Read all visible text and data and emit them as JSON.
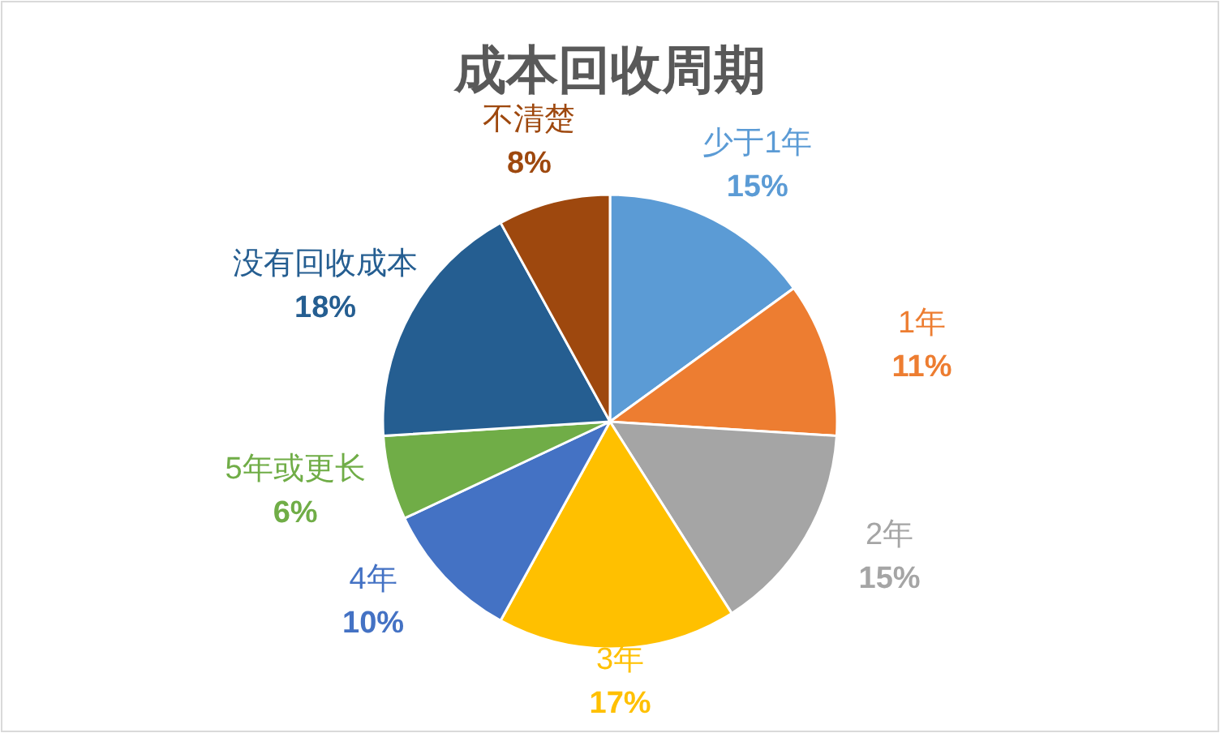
{
  "chart_data": {
    "type": "pie",
    "title": "成本回收周期",
    "categories": [
      "少于1年",
      "1年",
      "2年",
      "3年",
      "4年",
      "5年或更长",
      "没有回收成本",
      "不清楚"
    ],
    "values": [
      15,
      11,
      15,
      17,
      10,
      6,
      18,
      8
    ],
    "colors": [
      "#5b9bd5",
      "#ed7d31",
      "#a5a5a5",
      "#ffc000",
      "#4472c4",
      "#70ad47",
      "#255e91",
      "#9e480e"
    ],
    "value_labels": [
      "15%",
      "11%",
      "15%",
      "17%",
      "10%",
      "6%",
      "18%",
      "8%"
    ]
  }
}
